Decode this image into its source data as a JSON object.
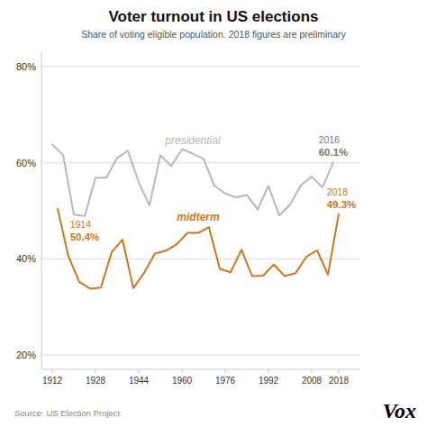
{
  "chart_data": {
    "type": "line",
    "title": "Voter turnout in US elections",
    "subtitle": "Share of voting eligible population. 2018 figures are preliminary",
    "series": [
      {
        "name": "presidential",
        "color": "#b8b8b8",
        "x": [
          1912,
          1916,
          1920,
          1924,
          1928,
          1932,
          1936,
          1940,
          1944,
          1948,
          1952,
          1956,
          1960,
          1964,
          1968,
          1972,
          1976,
          1980,
          1984,
          1988,
          1992,
          1996,
          2000,
          2004,
          2008,
          2012,
          2016
        ],
        "values": [
          63.8,
          61.6,
          49.2,
          48.9,
          56.9,
          56.9,
          61.0,
          62.5,
          55.9,
          51.1,
          61.6,
          59.3,
          62.8,
          61.9,
          60.8,
          55.2,
          53.6,
          52.8,
          53.3,
          50.3,
          55.2,
          49.0,
          51.3,
          55.3,
          57.1,
          54.9,
          60.1
        ]
      },
      {
        "name": "midterm",
        "color": "#cc7722",
        "x": [
          1914,
          1918,
          1922,
          1926,
          1930,
          1934,
          1938,
          1942,
          1946,
          1950,
          1954,
          1958,
          1962,
          1966,
          1970,
          1974,
          1978,
          1982,
          1986,
          1990,
          1994,
          1998,
          2002,
          2006,
          2010,
          2014,
          2018
        ],
        "values": [
          50.4,
          40.5,
          35.2,
          33.8,
          34.0,
          41.4,
          44.0,
          33.9,
          37.1,
          41.1,
          41.7,
          43.0,
          45.4,
          45.4,
          46.6,
          37.9,
          37.2,
          41.9,
          36.4,
          36.5,
          38.8,
          36.4,
          37.0,
          40.4,
          41.8,
          36.7,
          49.3
        ]
      }
    ],
    "xlim": [
      1908,
      2026
    ],
    "ylim": [
      17,
      83
    ],
    "xticks": [
      1912,
      1928,
      1944,
      1960,
      1976,
      1992,
      2008,
      2018
    ],
    "yticks": [
      {
        "value": 20,
        "label": "20%"
      },
      {
        "value": 40,
        "label": "40%"
      },
      {
        "value": 60,
        "label": "60%"
      },
      {
        "value": 80,
        "label": "80%"
      }
    ],
    "grid": "y",
    "annotations": [
      {
        "x": 1914,
        "y": 50.4,
        "labels": [
          "1914",
          "50.4%"
        ],
        "color": "#cc7722"
      },
      {
        "x": 2016,
        "y": 60.1,
        "labels": [
          "2016",
          "60.1%"
        ],
        "color": "#777777"
      },
      {
        "x": 2018,
        "y": 49.3,
        "labels": [
          "2018",
          "49.3%"
        ],
        "color": "#cc7722"
      }
    ],
    "source": "Source: US Election Project",
    "logo": "Vox"
  }
}
